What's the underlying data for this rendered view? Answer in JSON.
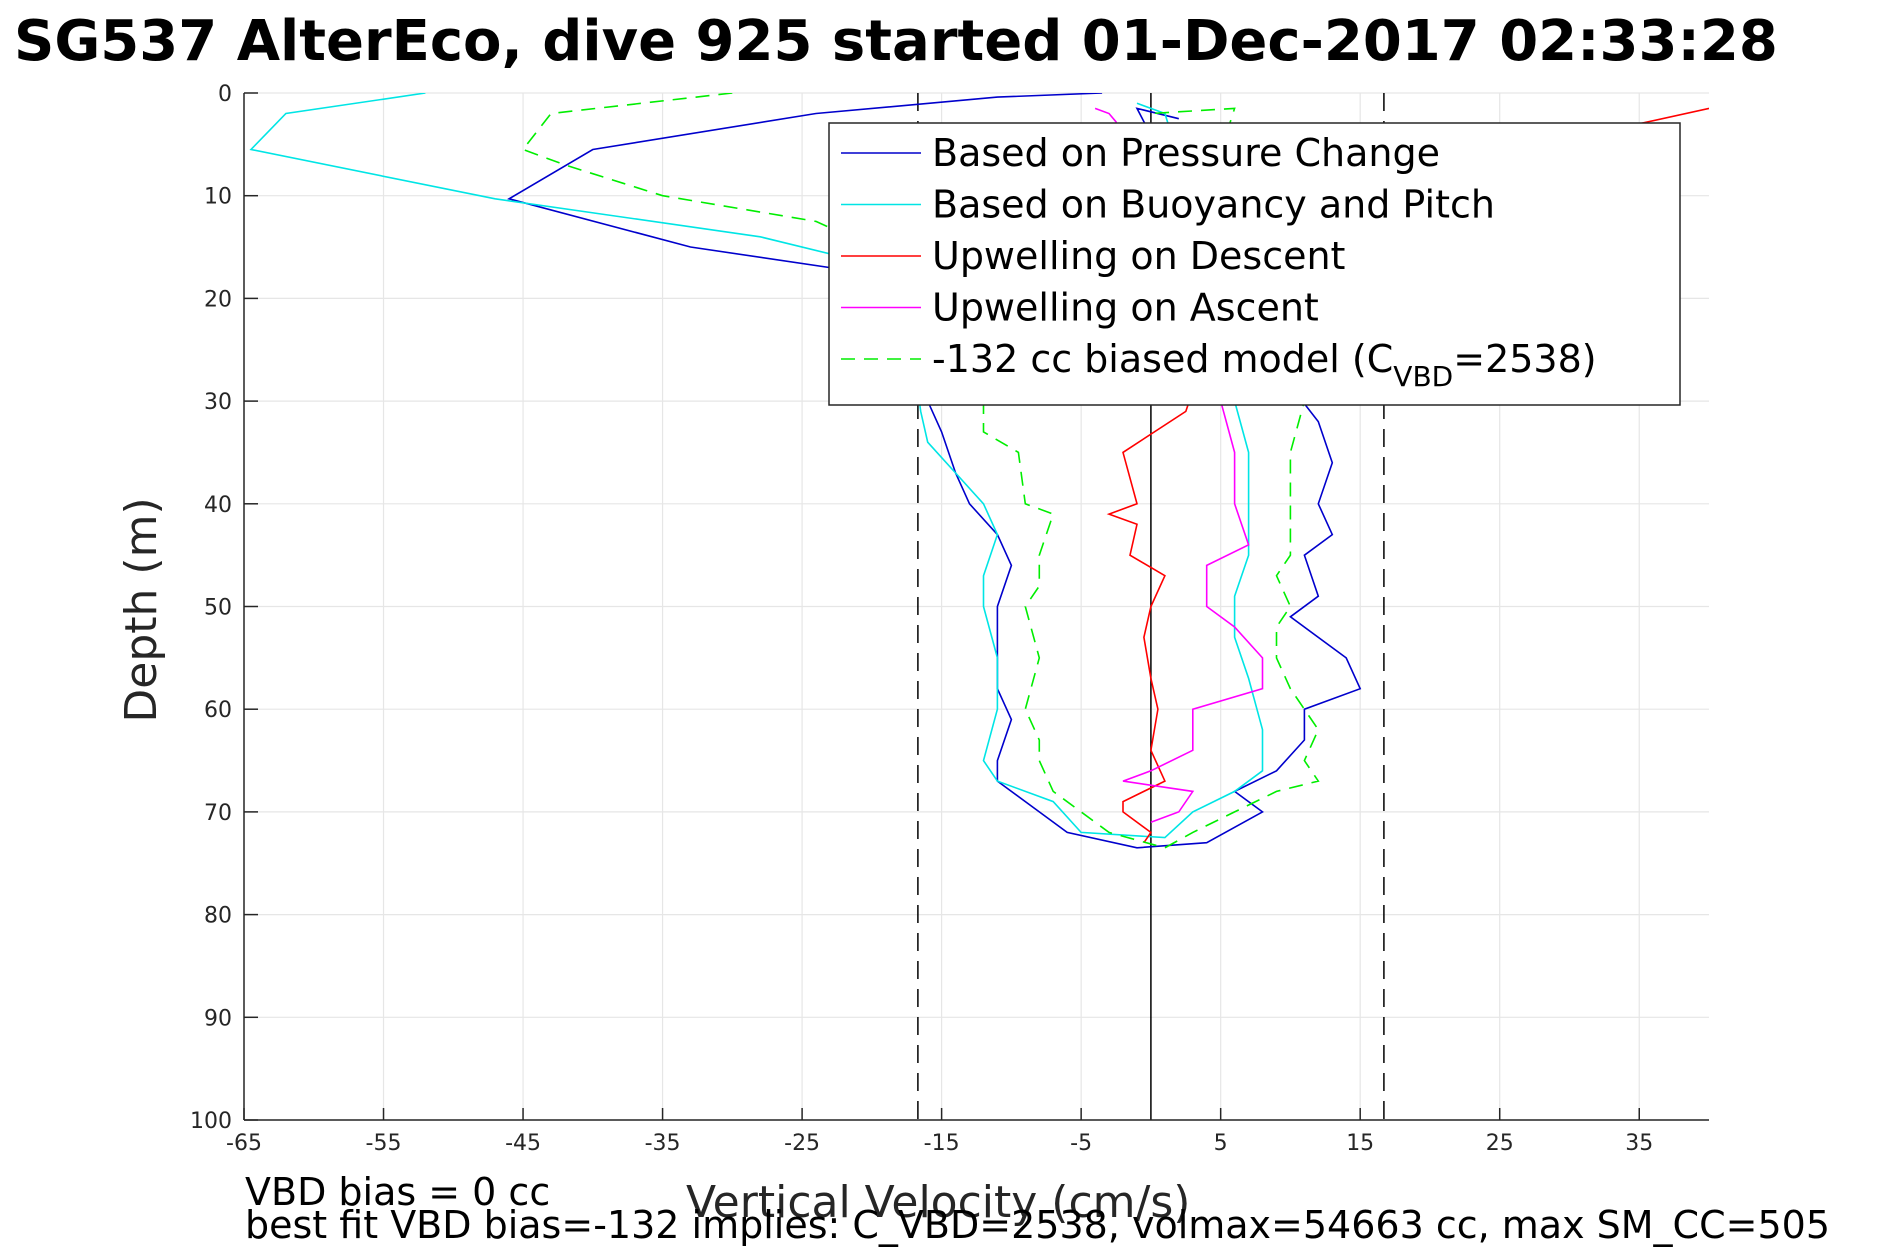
{
  "chart_data": {
    "type": "line",
    "title": "SG537 AlterEco, dive 925 started 01-Dec-2017 02:33:28",
    "xlabel": "Vertical Velocity (cm/s)",
    "ylabel": "Depth (m)",
    "xlim": [
      -65,
      40
    ],
    "ylim": [
      0,
      100
    ],
    "y_reversed": true,
    "grid": true,
    "legend_position": "top-right",
    "x_ticks": [
      "-65",
      "-55",
      "-45",
      "-35",
      "-25",
      "-15",
      "-5",
      "5",
      "15",
      "25",
      "35"
    ],
    "y_ticks": [
      "0",
      "10",
      "20",
      "30",
      "40",
      "50",
      "60",
      "70",
      "80",
      "90",
      "100"
    ],
    "reference_lines": {
      "zero_solid": 0,
      "dashed": [
        -16.7,
        16.7
      ]
    },
    "series": [
      {
        "name": "Based on Pressure Change",
        "color": "#0000cc",
        "dash": false,
        "points": [
          [
            -3.5,
            0
          ],
          [
            -11,
            0.4
          ],
          [
            -24,
            2
          ],
          [
            -40,
            5.5
          ],
          [
            -46,
            10.3
          ],
          [
            -33,
            15
          ],
          [
            -23,
            17
          ],
          [
            -20,
            20
          ],
          [
            -18,
            25
          ],
          [
            -16,
            30
          ],
          [
            -15,
            33
          ],
          [
            -14,
            37
          ],
          [
            -13,
            40
          ],
          [
            -11,
            43
          ],
          [
            -10,
            46
          ],
          [
            -11,
            50
          ],
          [
            -11,
            55
          ],
          [
            -11,
            58
          ],
          [
            -10,
            61
          ],
          [
            -11,
            65
          ],
          [
            -11,
            67
          ],
          [
            -8,
            70
          ],
          [
            -6,
            72
          ],
          [
            -1,
            73.5
          ],
          [
            4,
            73
          ],
          [
            8,
            70
          ],
          [
            6,
            68
          ],
          [
            9,
            66
          ],
          [
            11,
            63
          ],
          [
            11,
            60
          ],
          [
            15,
            58
          ],
          [
            14,
            55
          ],
          [
            10,
            51
          ],
          [
            12,
            49
          ],
          [
            11,
            45
          ],
          [
            13,
            43
          ],
          [
            12,
            40
          ],
          [
            13,
            36
          ],
          [
            12,
            32
          ],
          [
            8,
            25
          ],
          [
            -1,
            1.5
          ],
          [
            2,
            2.5
          ]
        ]
      },
      {
        "name": "Based on Buoyancy and Pitch",
        "color": "#00e5e5",
        "dash": false,
        "points": [
          [
            -52,
            0
          ],
          [
            -62,
            2
          ],
          [
            -64.5,
            5.5
          ],
          [
            -47,
            10.3
          ],
          [
            -28,
            14
          ],
          [
            -22,
            16
          ],
          [
            -19,
            20
          ],
          [
            -17,
            26
          ],
          [
            -16.5,
            31
          ],
          [
            -16,
            34
          ],
          [
            -14,
            37
          ],
          [
            -12,
            40
          ],
          [
            -11,
            43
          ],
          [
            -12,
            47
          ],
          [
            -12,
            50
          ],
          [
            -11,
            55
          ],
          [
            -11,
            60
          ],
          [
            -12,
            65
          ],
          [
            -11,
            67
          ],
          [
            -7,
            69
          ],
          [
            -5,
            72
          ],
          [
            1,
            72.5
          ],
          [
            3,
            70
          ],
          [
            6,
            68
          ],
          [
            8,
            66
          ],
          [
            8,
            62
          ],
          [
            7,
            57
          ],
          [
            6,
            53
          ],
          [
            6,
            49
          ],
          [
            7,
            45
          ],
          [
            7,
            40
          ],
          [
            7,
            35
          ],
          [
            6,
            30
          ],
          [
            6,
            25
          ],
          [
            4,
            15
          ],
          [
            1,
            2
          ],
          [
            -1,
            1
          ]
        ]
      },
      {
        "name": "Upwelling on Descent",
        "color": "#ff0000",
        "dash": false,
        "points": [
          [
            40,
            1.5
          ],
          [
            35,
            3
          ],
          [
            25,
            10
          ],
          [
            10,
            18
          ],
          [
            4,
            25
          ],
          [
            2.5,
            31
          ],
          [
            -2,
            35
          ],
          [
            -1,
            40
          ],
          [
            -3,
            41
          ],
          [
            -1,
            42
          ],
          [
            -1.5,
            45
          ],
          [
            1,
            47
          ],
          [
            0,
            50
          ],
          [
            -0.5,
            53
          ],
          [
            0,
            57
          ],
          [
            0.5,
            60
          ],
          [
            0,
            64
          ],
          [
            1,
            67
          ],
          [
            -2,
            69
          ],
          [
            -2,
            70
          ],
          [
            0,
            72
          ],
          [
            -0.5,
            73
          ]
        ]
      },
      {
        "name": "Upwelling on Ascent",
        "color": "#ff00ff",
        "dash": false,
        "points": [
          [
            -4,
            1.5
          ],
          [
            -3,
            2
          ],
          [
            -2.5,
            2.8
          ],
          [
            2,
            25
          ],
          [
            5,
            30
          ],
          [
            6,
            35
          ],
          [
            6,
            40
          ],
          [
            7,
            44
          ],
          [
            4,
            46
          ],
          [
            4,
            50
          ],
          [
            6,
            52
          ],
          [
            8,
            55
          ],
          [
            8,
            58
          ],
          [
            3,
            60
          ],
          [
            3,
            64
          ],
          [
            0,
            66
          ],
          [
            -2,
            67
          ],
          [
            3,
            68
          ],
          [
            2,
            70
          ],
          [
            0,
            71
          ]
        ]
      },
      {
        "name": "-132 cc biased model (C",
        "name_sub": "VBD",
        "name_suffix": "=2538)",
        "color": "#00ee00",
        "dash": true,
        "points": [
          [
            -30,
            0
          ],
          [
            -43,
            2
          ],
          [
            -45,
            5.5
          ],
          [
            -42,
            7
          ],
          [
            -35,
            10
          ],
          [
            -24,
            12.5
          ],
          [
            -20,
            15
          ],
          [
            -17,
            20
          ],
          [
            -14,
            25
          ],
          [
            -12,
            30
          ],
          [
            -12,
            33
          ],
          [
            -9.5,
            35
          ],
          [
            -9,
            40
          ],
          [
            -7,
            41
          ],
          [
            -8,
            45
          ],
          [
            -8,
            48
          ],
          [
            -9,
            50
          ],
          [
            -8,
            55
          ],
          [
            -9,
            60
          ],
          [
            -8,
            63
          ],
          [
            -8,
            65
          ],
          [
            -7,
            68
          ],
          [
            -5,
            70
          ],
          [
            -3,
            72
          ],
          [
            1,
            73.5
          ],
          [
            3,
            72
          ],
          [
            6,
            70
          ],
          [
            9,
            68
          ],
          [
            12,
            67
          ],
          [
            11,
            65
          ],
          [
            12,
            62
          ],
          [
            10,
            58
          ],
          [
            9,
            55
          ],
          [
            9,
            52
          ],
          [
            10,
            50
          ],
          [
            9,
            47
          ],
          [
            10,
            45
          ],
          [
            10,
            42
          ],
          [
            10,
            40
          ],
          [
            10,
            35
          ],
          [
            11,
            30
          ],
          [
            9,
            22
          ],
          [
            4,
            10
          ],
          [
            6,
            1.5
          ],
          [
            0,
            2
          ]
        ]
      }
    ],
    "legend_entries": [
      "Based on Pressure Change",
      "Based on Buoyancy and Pitch",
      "Upwelling on Descent",
      "Upwelling on Ascent",
      "-132 cc biased model (CVBD=2538)"
    ]
  },
  "notes": {
    "vbd_bias": "VBD bias = 0 cc",
    "best_fit": "best fit VBD bias=-132 implies: C_VBD=2538, volmax=54663 cc, max SM_CC=505"
  }
}
